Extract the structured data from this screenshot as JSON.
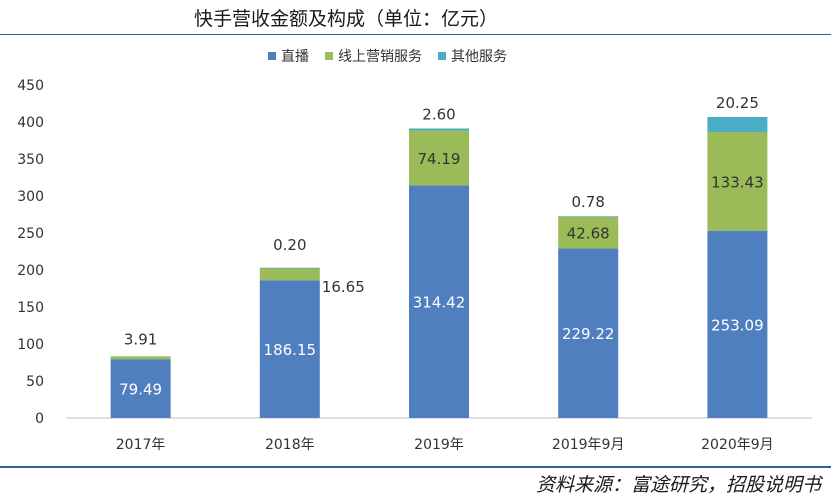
{
  "title": "快手营收金额及构成（单位：亿元）",
  "source": "资料来源：富途研究，招股说明书",
  "chart_data": {
    "type": "bar",
    "stacked": true,
    "categories": [
      "2017年",
      "2018年",
      "2019年",
      "2019年9月",
      "2020年9月"
    ],
    "series": [
      {
        "name": "直播",
        "color": "#4f7fbe",
        "values": [
          79.49,
          186.15,
          314.42,
          229.22,
          253.09
        ],
        "labels": [
          "79.49",
          "186.15",
          "314.42",
          "229.22",
          "253.09"
        ]
      },
      {
        "name": "线上营销服务",
        "color": "#9bbb59",
        "values": [
          3.91,
          16.65,
          74.19,
          42.68,
          133.43
        ],
        "labels": [
          "3.91",
          "16.65",
          "74.19",
          "42.68",
          "133.43"
        ]
      },
      {
        "name": "其他服务",
        "color": "#4bacc6",
        "values": [
          0.0,
          0.2,
          2.6,
          0.78,
          20.25
        ],
        "labels": [
          "",
          "0.20",
          "2.60",
          "0.78",
          "20.25"
        ]
      }
    ],
    "y_ticks": [
      0,
      50,
      100,
      150,
      200,
      250,
      300,
      350,
      400,
      450
    ],
    "ylim": [
      0,
      450
    ],
    "legend_position": "top-center"
  }
}
